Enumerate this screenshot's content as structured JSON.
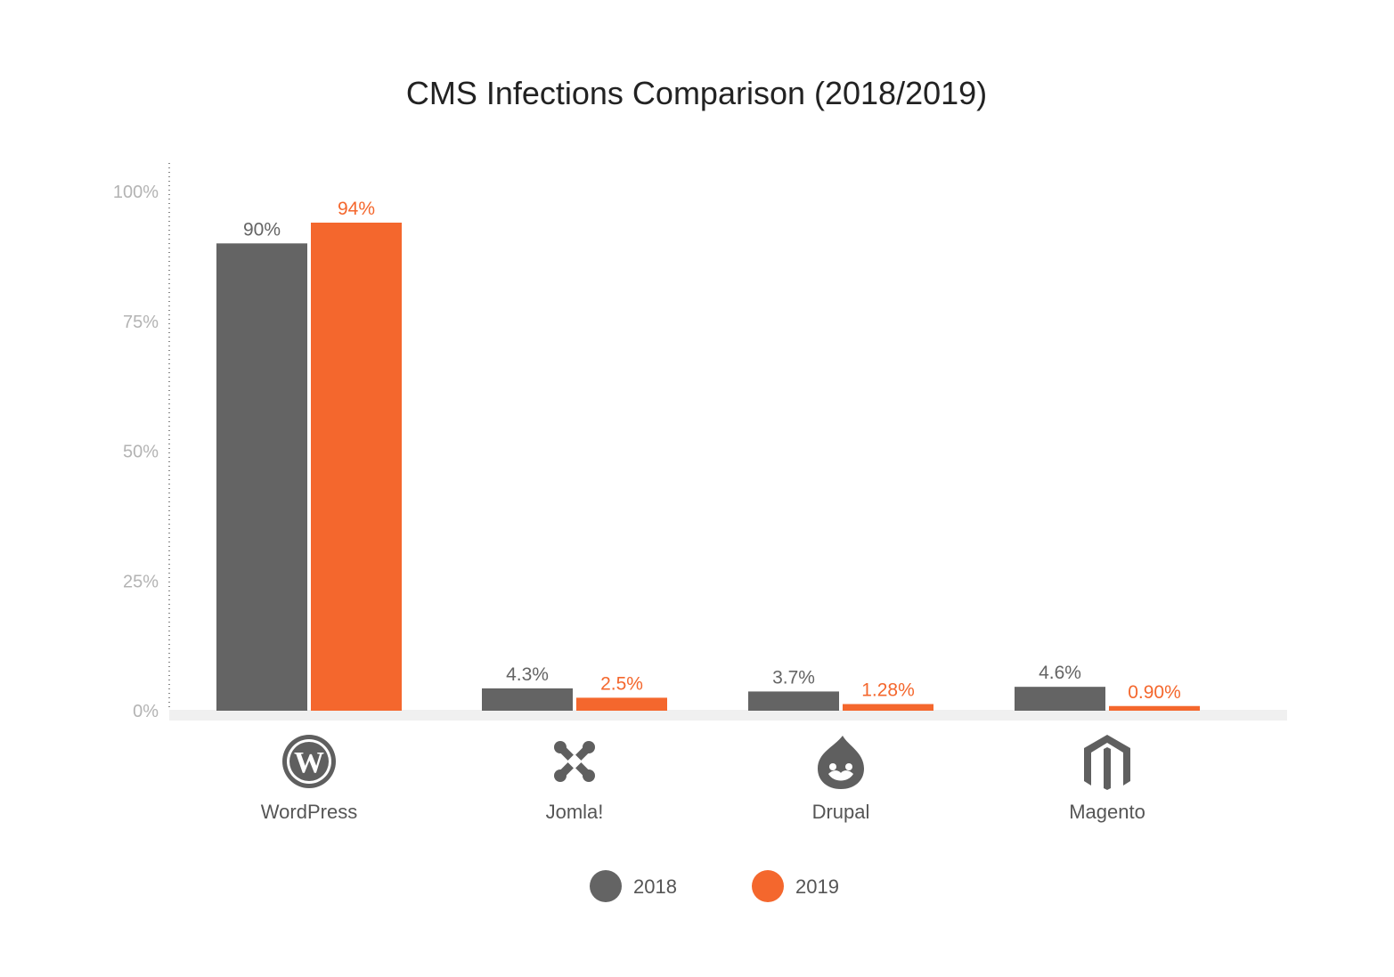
{
  "chart_data": {
    "type": "bar",
    "title": "CMS Infections Comparison (2018/2019)",
    "categories": [
      "WordPress",
      "Jomla!",
      "Drupal",
      "Magento"
    ],
    "category_icons": [
      "wordpress-icon",
      "joomla-icon",
      "drupal-icon",
      "magento-icon"
    ],
    "series": [
      {
        "name": "2018",
        "color": "#646464",
        "values": [
          90,
          4.3,
          3.7,
          4.6
        ],
        "labels": [
          "90%",
          "4.3%",
          "3.7%",
          "4.6%"
        ]
      },
      {
        "name": "2019",
        "color": "#f4672d",
        "values": [
          94,
          2.5,
          1.28,
          0.9
        ],
        "labels": [
          "94%",
          "2.5%",
          "1.28%",
          "0.90%"
        ]
      }
    ],
    "yticks": [
      0,
      25,
      50,
      75,
      100
    ],
    "ytick_labels": [
      "0%",
      "25%",
      "50%",
      "75%",
      "100%"
    ],
    "ylim": [
      0,
      100
    ],
    "xlabel": "",
    "ylabel": "",
    "grid": false,
    "legend": "bottom-center"
  }
}
